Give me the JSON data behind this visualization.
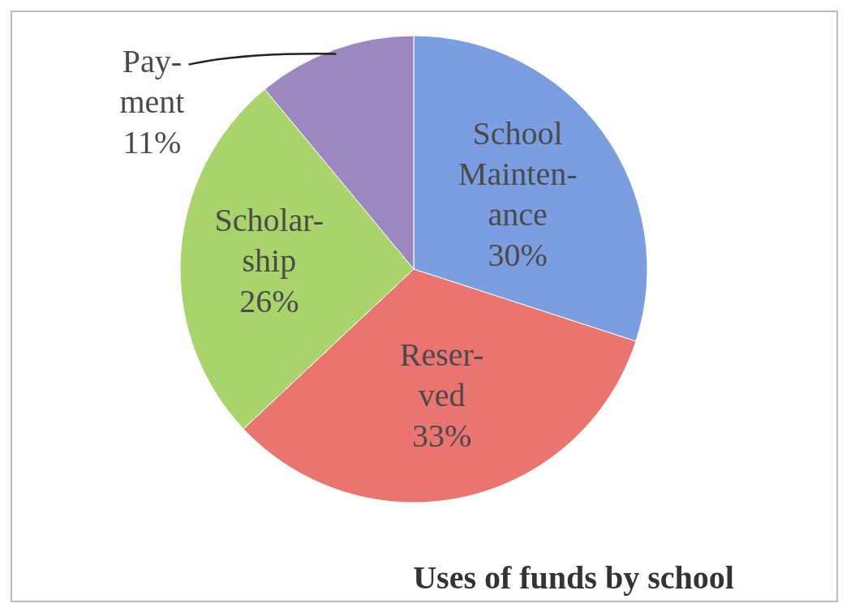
{
  "chart_data": {
    "type": "pie",
    "title": "Uses of funds by school",
    "categories": [
      "School\nMainten-\nance",
      "Reser-\nved",
      "Scholar-\nship",
      "Pay-\nment"
    ],
    "values": [
      30,
      33,
      26,
      11
    ],
    "colors": [
      "#7b9ee0",
      "#e97470",
      "#a9d46c",
      "#9c87bf"
    ],
    "value_labels": [
      "30%",
      "33%",
      "26%",
      "11%"
    ]
  }
}
